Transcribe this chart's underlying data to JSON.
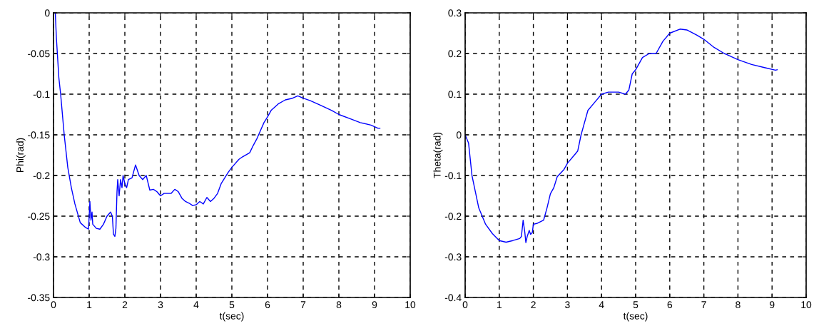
{
  "chart_data": [
    {
      "type": "line",
      "xlabel": "t(sec)",
      "ylabel": "Phi(rad)",
      "xlim": [
        0,
        10
      ],
      "ylim": [
        -0.35,
        0
      ],
      "xticks": [
        0,
        1,
        2,
        3,
        4,
        5,
        6,
        7,
        8,
        9,
        10
      ],
      "yticks": [
        -0.35,
        -0.3,
        -0.25,
        -0.2,
        -0.15,
        -0.1,
        -0.05,
        0
      ],
      "grid": true,
      "line_style": "solid",
      "marker": "none",
      "series": [
        {
          "color": "#0000ff",
          "x": [
            0,
            0.05,
            0.08,
            0.15,
            0.2,
            0.3,
            0.4,
            0.5,
            0.6,
            0.75,
            0.9,
            0.98,
            1.0,
            1.02,
            1.05,
            1.08,
            1.1,
            1.2,
            1.3,
            1.4,
            1.5,
            1.6,
            1.65,
            1.68,
            1.72,
            1.75,
            1.78,
            1.8,
            1.84,
            1.88,
            1.92,
            1.95,
            2.0,
            2.05,
            2.1,
            2.2,
            2.3,
            2.4,
            2.5,
            2.6,
            2.7,
            2.8,
            2.9,
            3.0,
            3.1,
            3.3,
            3.4,
            3.5,
            3.6,
            3.7,
            3.8,
            3.9,
            4.0,
            4.1,
            4.2,
            4.3,
            4.4,
            4.5,
            4.6,
            4.7,
            4.8,
            4.9,
            5.0,
            5.2,
            5.3,
            5.5,
            5.6,
            5.7,
            5.8,
            5.9,
            6.0,
            6.1,
            6.3,
            6.5,
            6.7,
            6.85,
            7.0,
            7.2,
            7.5,
            7.8,
            8.0,
            8.3,
            8.6,
            8.9,
            9.1,
            9.15
          ],
          "values": [
            0,
            0,
            -0.03,
            -0.08,
            -0.1,
            -0.15,
            -0.19,
            -0.215,
            -0.235,
            -0.258,
            -0.264,
            -0.266,
            -0.25,
            -0.232,
            -0.255,
            -0.245,
            -0.26,
            -0.265,
            -0.266,
            -0.26,
            -0.25,
            -0.245,
            -0.25,
            -0.272,
            -0.275,
            -0.265,
            -0.22,
            -0.205,
            -0.225,
            -0.205,
            -0.215,
            -0.2,
            -0.21,
            -0.215,
            -0.205,
            -0.203,
            -0.187,
            -0.2,
            -0.205,
            -0.2,
            -0.218,
            -0.217,
            -0.22,
            -0.225,
            -0.222,
            -0.222,
            -0.217,
            -0.22,
            -0.228,
            -0.232,
            -0.234,
            -0.237,
            -0.236,
            -0.232,
            -0.235,
            -0.227,
            -0.232,
            -0.228,
            -0.222,
            -0.21,
            -0.203,
            -0.196,
            -0.19,
            -0.18,
            -0.177,
            -0.172,
            -0.163,
            -0.155,
            -0.145,
            -0.135,
            -0.128,
            -0.12,
            -0.112,
            -0.107,
            -0.105,
            -0.102,
            -0.105,
            -0.108,
            -0.114,
            -0.12,
            -0.125,
            -0.13,
            -0.135,
            -0.138,
            -0.142,
            -0.142
          ]
        }
      ]
    },
    {
      "type": "line",
      "xlabel": "t(sec)",
      "ylabel": "Theta(rad)",
      "xlim": [
        0,
        10
      ],
      "ylim": [
        -0.4,
        0.3
      ],
      "xticks": [
        0,
        1,
        2,
        3,
        4,
        5,
        6,
        7,
        8,
        9,
        10
      ],
      "yticks": [
        -0.4,
        -0.3,
        -0.2,
        -0.1,
        0,
        0.1,
        0.2,
        0.3
      ],
      "grid": true,
      "line_style": "solid",
      "marker": "none",
      "series": [
        {
          "color": "#0000ff",
          "x": [
            0,
            0.1,
            0.2,
            0.3,
            0.4,
            0.5,
            0.6,
            0.8,
            1.0,
            1.2,
            1.4,
            1.6,
            1.65,
            1.7,
            1.75,
            1.78,
            1.82,
            1.88,
            1.92,
            1.97,
            2.0,
            2.1,
            2.3,
            2.4,
            2.5,
            2.6,
            2.7,
            2.9,
            3.0,
            3.2,
            3.3,
            3.4,
            3.5,
            3.6,
            3.8,
            4.0,
            4.2,
            4.5,
            4.7,
            4.8,
            4.9,
            5.0,
            5.2,
            5.4,
            5.6,
            5.8,
            6.0,
            6.3,
            6.5,
            6.8,
            7.0,
            7.3,
            7.6,
            8.0,
            8.4,
            8.8,
            9.1,
            9.15
          ],
          "values": [
            0,
            -0.02,
            -0.1,
            -0.14,
            -0.18,
            -0.2,
            -0.22,
            -0.243,
            -0.26,
            -0.264,
            -0.26,
            -0.255,
            -0.25,
            -0.21,
            -0.24,
            -0.265,
            -0.25,
            -0.235,
            -0.245,
            -0.24,
            -0.22,
            -0.218,
            -0.21,
            -0.18,
            -0.145,
            -0.13,
            -0.103,
            -0.085,
            -0.07,
            -0.05,
            -0.04,
            0.0,
            0.03,
            0.06,
            0.08,
            0.1,
            0.105,
            0.105,
            0.1,
            0.11,
            0.15,
            0.16,
            0.19,
            0.2,
            0.2,
            0.23,
            0.25,
            0.26,
            0.258,
            0.245,
            0.235,
            0.215,
            0.2,
            0.185,
            0.173,
            0.165,
            0.159,
            0.16
          ]
        }
      ]
    }
  ]
}
